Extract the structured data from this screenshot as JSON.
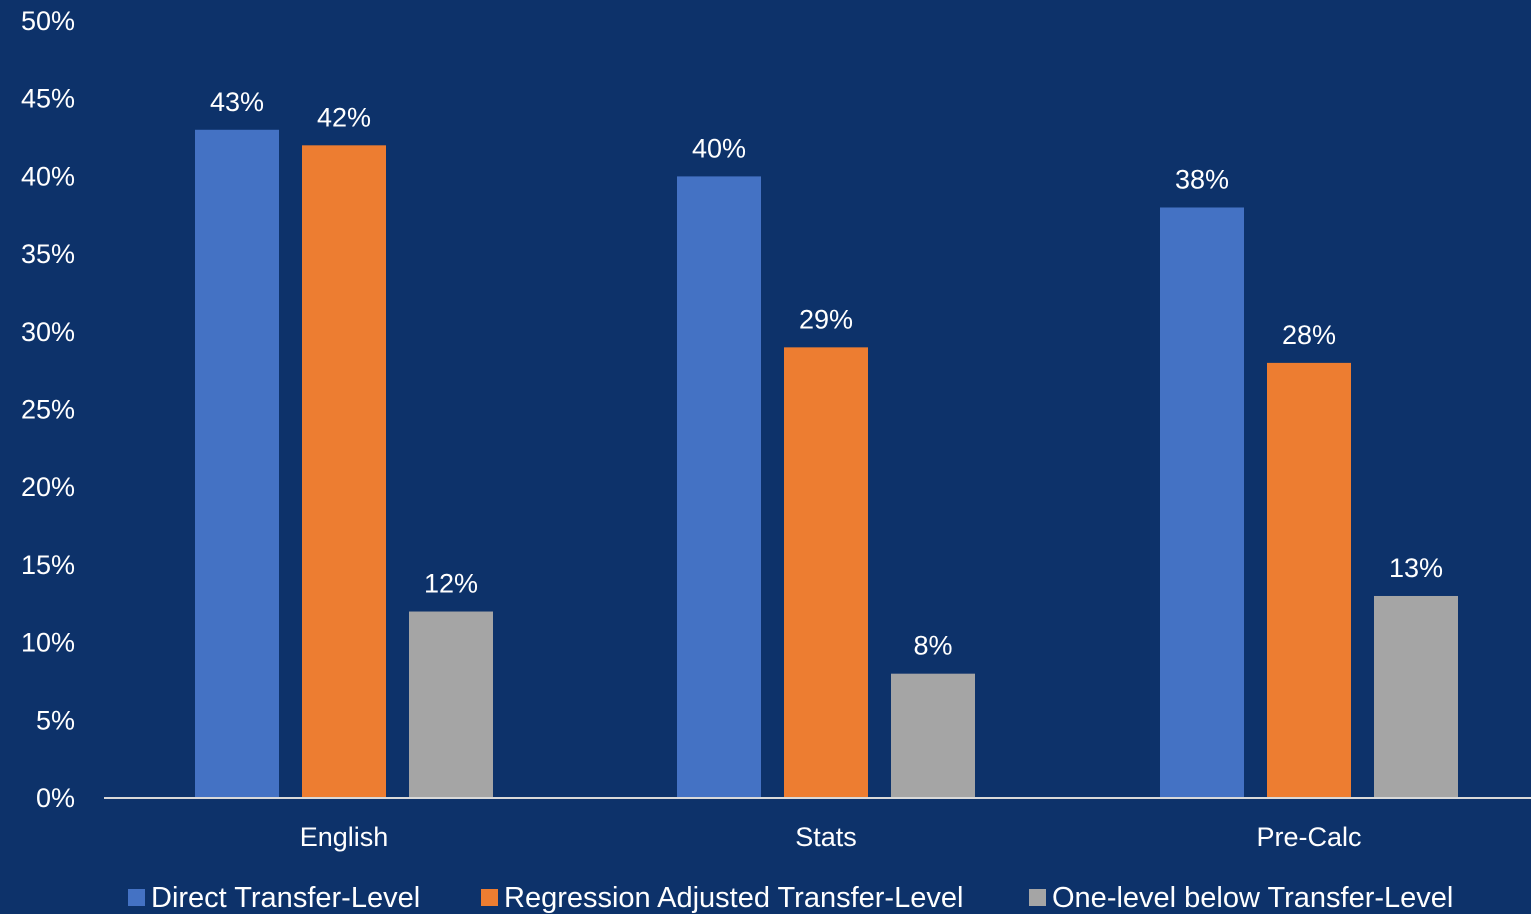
{
  "chart_data": {
    "type": "bar",
    "title": "",
    "xlabel": "",
    "ylabel": "",
    "categories": [
      "English",
      "Stats",
      "Pre-Calc"
    ],
    "series": [
      {
        "name": "Direct Transfer-Level",
        "values": [
          43,
          40,
          38
        ],
        "color": "#4472c4"
      },
      {
        "name": "Regression Adjusted Transfer-Level",
        "values": [
          42,
          29,
          28
        ],
        "color": "#ed7d31"
      },
      {
        "name": "One-level below Transfer-Level",
        "values": [
          12,
          8,
          13
        ],
        "color": "#a5a5a5"
      }
    ],
    "ylim": [
      0,
      50
    ],
    "yticks": [
      0,
      5,
      10,
      15,
      20,
      25,
      30,
      35,
      40,
      45,
      50
    ],
    "value_suffix": "%",
    "data_labels": true,
    "grid": false,
    "legend_position": "bottom",
    "background_color": "#0d326a",
    "text_color": "#ffffff"
  }
}
